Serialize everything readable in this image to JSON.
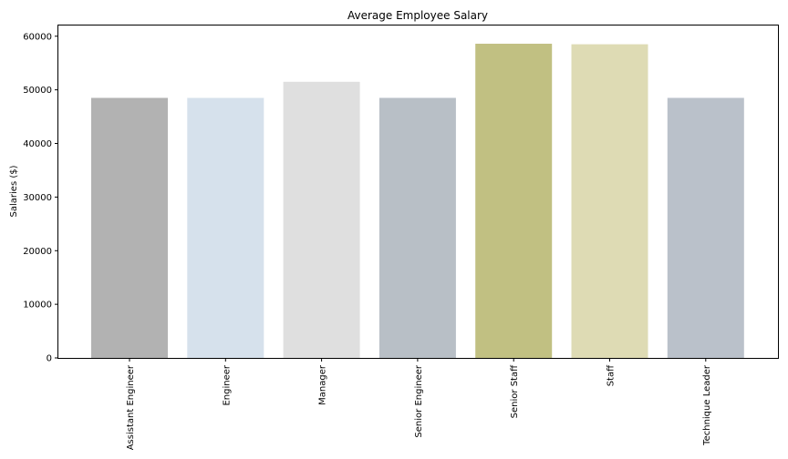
{
  "chart_data": {
    "type": "bar",
    "title": "Average Employee Salary",
    "xlabel": "",
    "ylabel": "Salaries ($)",
    "categories": [
      "Assistant Engineer",
      "Engineer",
      "Manager",
      "Senior Engineer",
      "Senior Staff",
      "Staff",
      "Technique Leader"
    ],
    "values": [
      48500,
      48500,
      51500,
      48500,
      58600,
      58500,
      48500
    ],
    "colors": [
      "#b2b2b2",
      "#d6e1ec",
      "#dfdfdf",
      "#b8bfc6",
      "#c1c082",
      "#dedbb4",
      "#bac1ca"
    ],
    "ylim": [
      0,
      62000
    ],
    "yticks": [
      0,
      10000,
      20000,
      30000,
      40000,
      50000,
      60000
    ],
    "grid": false,
    "legend": "none"
  }
}
